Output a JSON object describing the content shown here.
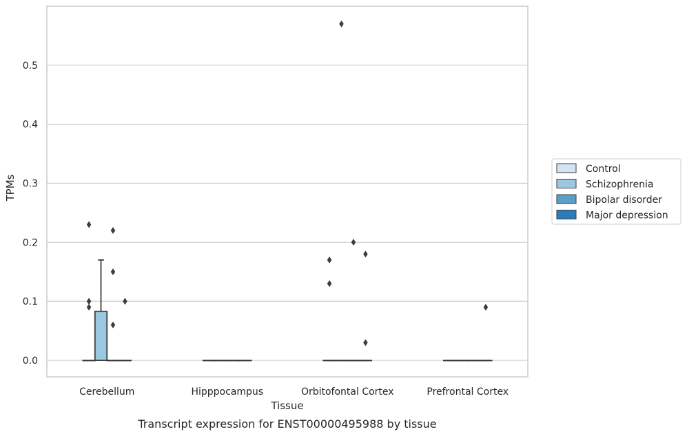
{
  "chart_data": {
    "type": "box",
    "title": "",
    "caption": "Transcript expression for ENST00000495988 by tissue",
    "xlabel": "Tissue",
    "ylabel": "TPMs",
    "ylim": [
      -0.028,
      0.6
    ],
    "yticks": [
      "0.0",
      "0.1",
      "0.2",
      "0.3",
      "0.4",
      "0.5"
    ],
    "ytick_values": [
      0.0,
      0.1,
      0.2,
      0.3,
      0.4,
      0.5
    ],
    "grid": "horizontal",
    "legend_position": "right",
    "categories": [
      "Cerebellum",
      "Hipppocampus",
      "Orbitofontal Cortex",
      "Prefrontal Cortex"
    ],
    "series": [
      {
        "name": "Control",
        "color": "#d3e4f3",
        "boxes": [
          {
            "q1": 0,
            "median": 0,
            "q3": 0,
            "whisker_low": 0,
            "whisker_high": 0,
            "outliers": [
              0.23,
              0.1,
              0.09
            ]
          },
          {
            "q1": 0,
            "median": 0,
            "q3": 0,
            "whisker_low": 0,
            "whisker_high": 0,
            "outliers": []
          },
          {
            "q1": 0,
            "median": 0,
            "q3": 0,
            "whisker_low": 0,
            "whisker_high": 0,
            "outliers": [
              0.17,
              0.13
            ]
          },
          {
            "q1": 0,
            "median": 0,
            "q3": 0,
            "whisker_low": 0,
            "whisker_high": 0,
            "outliers": []
          }
        ]
      },
      {
        "name": "Schizophrenia",
        "color": "#9ac8e0",
        "boxes": [
          {
            "q1": 0,
            "median": 0,
            "q3": 0.083,
            "whisker_low": 0,
            "whisker_high": 0.17,
            "outliers": []
          },
          {
            "q1": 0,
            "median": 0,
            "q3": 0,
            "whisker_low": 0,
            "whisker_high": 0,
            "outliers": []
          },
          {
            "q1": 0,
            "median": 0,
            "q3": 0,
            "whisker_low": 0,
            "whisker_high": 0,
            "outliers": [
              0.57
            ]
          },
          {
            "q1": 0,
            "median": 0,
            "q3": 0,
            "whisker_low": 0,
            "whisker_high": 0,
            "outliers": []
          }
        ]
      },
      {
        "name": "Bipolar disorder",
        "color": "#5a9ec9",
        "boxes": [
          {
            "q1": 0,
            "median": 0,
            "q3": 0,
            "whisker_low": 0,
            "whisker_high": 0,
            "outliers": [
              0.22,
              0.15,
              0.06
            ]
          },
          {
            "q1": 0,
            "median": 0,
            "q3": 0,
            "whisker_low": 0,
            "whisker_high": 0,
            "outliers": []
          },
          {
            "q1": 0,
            "median": 0,
            "q3": 0,
            "whisker_low": 0,
            "whisker_high": 0,
            "outliers": [
              0.2
            ]
          },
          {
            "q1": 0,
            "median": 0,
            "q3": 0,
            "whisker_low": 0,
            "whisker_high": 0,
            "outliers": []
          }
        ]
      },
      {
        "name": "Major depression",
        "color": "#2c7bb6",
        "boxes": [
          {
            "q1": 0,
            "median": 0,
            "q3": 0,
            "whisker_low": 0,
            "whisker_high": 0,
            "outliers": [
              0.1
            ]
          },
          {
            "q1": 0,
            "median": 0,
            "q3": 0,
            "whisker_low": 0,
            "whisker_high": 0,
            "outliers": []
          },
          {
            "q1": 0,
            "median": 0,
            "q3": 0,
            "whisker_low": 0,
            "whisker_high": 0,
            "outliers": [
              0.18,
              0.03
            ]
          },
          {
            "q1": 0,
            "median": 0,
            "q3": 0,
            "whisker_low": 0,
            "whisker_high": 0,
            "outliers": [
              0.09
            ]
          }
        ]
      }
    ]
  }
}
